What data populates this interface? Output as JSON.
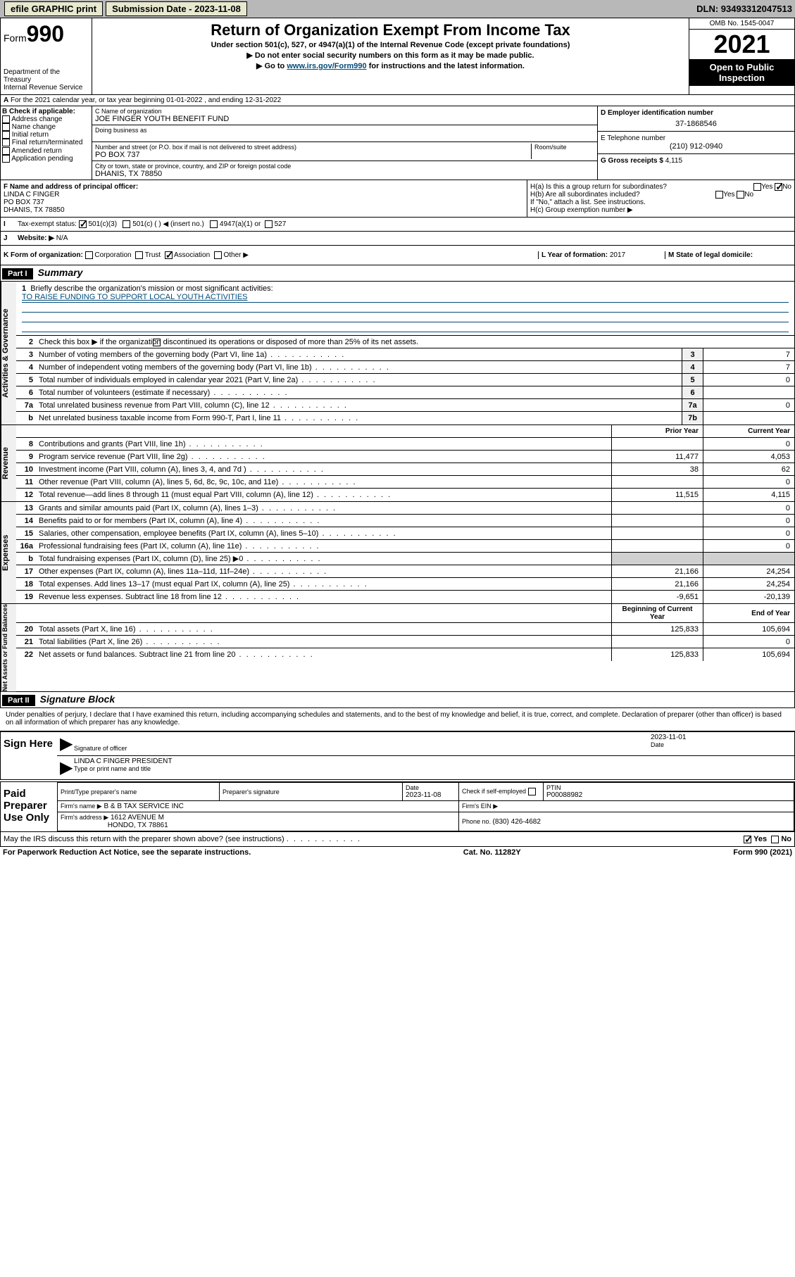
{
  "topbar": {
    "efile": "efile GRAPHIC print",
    "submission_label": "Submission Date - 2023-11-08",
    "dln": "DLN: 93493312047513"
  },
  "header": {
    "form": "Form",
    "form_num": "990",
    "dept": "Department of the Treasury",
    "irs": "Internal Revenue Service",
    "title": "Return of Organization Exempt From Income Tax",
    "sub1": "Under section 501(c), 527, or 4947(a)(1) of the Internal Revenue Code (except private foundations)",
    "sub2": "▶ Do not enter social security numbers on this form as it may be made public.",
    "sub3_pre": "▶ Go to ",
    "sub3_link": "www.irs.gov/Form990",
    "sub3_post": " for instructions and the latest information.",
    "omb": "OMB No. 1545-0047",
    "year": "2021",
    "open": "Open to Public Inspection"
  },
  "section_a": {
    "a_text": "For the 2021 calendar year, or tax year beginning 01-01-2022   , and ending 12-31-2022",
    "b_label": "B Check if applicable:",
    "b_opts": [
      "Address change",
      "Name change",
      "Initial return",
      "Final return/terminated",
      "Amended return",
      "Application pending"
    ],
    "c_name_label": "C Name of organization",
    "c_name": "JOE FINGER YOUTH BENEFIT FUND",
    "dba_label": "Doing business as",
    "addr_label": "Number and street (or P.O. box if mail is not delivered to street address)",
    "room_label": "Room/suite",
    "addr": "PO BOX 737",
    "city_label": "City or town, state or province, country, and ZIP or foreign postal code",
    "city": "DHANIS, TX  78850",
    "d_label": "D Employer identification number",
    "d_val": "37-1868546",
    "e_label": "E Telephone number",
    "e_val": "(210) 912-0940",
    "g_label": "G Gross receipts $ ",
    "g_val": "4,115"
  },
  "section_f": {
    "f_label": "F  Name and address of principal officer:",
    "f_name": "LINDA C FINGER",
    "f_addr1": "PO BOX 737",
    "f_addr2": "DHANIS, TX  78850",
    "ha_label": "H(a)  Is this a group return for subordinates?",
    "hb_label": "H(b)  Are all subordinates included?",
    "h_note": "If \"No,\" attach a list. See instructions.",
    "hc_label": "H(c)  Group exemption number ▶",
    "yes": "Yes",
    "no": "No"
  },
  "section_i": {
    "i_label": "Tax-exempt status:",
    "i_501c3": "501(c)(3)",
    "i_501c": "501(c) (  )  ◀ (insert no.)",
    "i_4947": "4947(a)(1) or",
    "i_527": "527"
  },
  "section_j": {
    "j_label": "Website: ▶",
    "j_val": "N/A"
  },
  "section_k": {
    "k_label": "K Form of organization:",
    "k_corp": "Corporation",
    "k_trust": "Trust",
    "k_assoc": "Association",
    "k_other": "Other ▶",
    "l_label": "L Year of formation: ",
    "l_val": "2017",
    "m_label": "M State of legal domicile:"
  },
  "part1": {
    "hdr": "Part I",
    "title": "Summary",
    "l1_label": "Briefly describe the organization's mission or most significant activities:",
    "l1_val": "TO RAISE FUNDING TO SUPPORT LOCAL YOUTH ACTIVITIES",
    "l2": "Check this box ▶       if the organization discontinued its operations or disposed of more than 25% of its net assets.",
    "lines_gov": [
      {
        "n": "3",
        "t": "Number of voting members of the governing body (Part VI, line 1a)",
        "box": "3",
        "v": "7"
      },
      {
        "n": "4",
        "t": "Number of independent voting members of the governing body (Part VI, line 1b)",
        "box": "4",
        "v": "7"
      },
      {
        "n": "5",
        "t": "Total number of individuals employed in calendar year 2021 (Part V, line 2a)",
        "box": "5",
        "v": "0"
      },
      {
        "n": "6",
        "t": "Total number of volunteers (estimate if necessary)",
        "box": "6",
        "v": ""
      },
      {
        "n": "7a",
        "t": "Total unrelated business revenue from Part VIII, column (C), line 12",
        "box": "7a",
        "v": "0"
      },
      {
        "n": "b",
        "t": "Net unrelated business taxable income from Form 990-T, Part I, line 11",
        "box": "7b",
        "v": ""
      }
    ],
    "col_prior": "Prior Year",
    "col_current": "Current Year",
    "lines_rev": [
      {
        "n": "8",
        "t": "Contributions and grants (Part VIII, line 1h)",
        "p": "",
        "c": "0"
      },
      {
        "n": "9",
        "t": "Program service revenue (Part VIII, line 2g)",
        "p": "11,477",
        "c": "4,053"
      },
      {
        "n": "10",
        "t": "Investment income (Part VIII, column (A), lines 3, 4, and 7d )",
        "p": "38",
        "c": "62"
      },
      {
        "n": "11",
        "t": "Other revenue (Part VIII, column (A), lines 5, 6d, 8c, 9c, 10c, and 11e)",
        "p": "",
        "c": "0"
      },
      {
        "n": "12",
        "t": "Total revenue—add lines 8 through 11 (must equal Part VIII, column (A), line 12)",
        "p": "11,515",
        "c": "4,115"
      }
    ],
    "lines_exp": [
      {
        "n": "13",
        "t": "Grants and similar amounts paid (Part IX, column (A), lines 1–3)",
        "p": "",
        "c": "0"
      },
      {
        "n": "14",
        "t": "Benefits paid to or for members (Part IX, column (A), line 4)",
        "p": "",
        "c": "0"
      },
      {
        "n": "15",
        "t": "Salaries, other compensation, employee benefits (Part IX, column (A), lines 5–10)",
        "p": "",
        "c": "0"
      },
      {
        "n": "16a",
        "t": "Professional fundraising fees (Part IX, column (A), line 11e)",
        "p": "",
        "c": "0"
      },
      {
        "n": "b",
        "t": "Total fundraising expenses (Part IX, column (D), line 25) ▶0",
        "p": "shaded",
        "c": "shaded"
      },
      {
        "n": "17",
        "t": "Other expenses (Part IX, column (A), lines 11a–11d, 11f–24e)",
        "p": "21,166",
        "c": "24,254"
      },
      {
        "n": "18",
        "t": "Total expenses. Add lines 13–17 (must equal Part IX, column (A), line 25)",
        "p": "21,166",
        "c": "24,254"
      },
      {
        "n": "19",
        "t": "Revenue less expenses. Subtract line 18 from line 12",
        "p": "-9,651",
        "c": "-20,139"
      }
    ],
    "col_begin": "Beginning of Current Year",
    "col_end": "End of Year",
    "lines_net": [
      {
        "n": "20",
        "t": "Total assets (Part X, line 16)",
        "p": "125,833",
        "c": "105,694"
      },
      {
        "n": "21",
        "t": "Total liabilities (Part X, line 26)",
        "p": "",
        "c": "0"
      },
      {
        "n": "22",
        "t": "Net assets or fund balances. Subtract line 21 from line 20",
        "p": "125,833",
        "c": "105,694"
      }
    ],
    "tab_gov": "Activities & Governance",
    "tab_rev": "Revenue",
    "tab_exp": "Expenses",
    "tab_net": "Net Assets or Fund Balances"
  },
  "part2": {
    "hdr": "Part II",
    "title": "Signature Block",
    "perjury": "Under penalties of perjury, I declare that I have examined this return, including accompanying schedules and statements, and to the best of my knowledge and belief, it is true, correct, and complete. Declaration of preparer (other than officer) is based on all information of which preparer has any knowledge.",
    "sign_here": "Sign Here",
    "sig_officer": "Signature of officer",
    "sig_date": "Date",
    "sig_date_val": "2023-11-01",
    "sig_name": "LINDA C FINGER  PRESIDENT",
    "sig_name_label": "Type or print name and title",
    "paid": "Paid Preparer Use Only",
    "prep_name_label": "Print/Type preparer's name",
    "prep_sig_label": "Preparer's signature",
    "prep_date_label": "Date",
    "prep_date": "2023-11-08",
    "prep_check": "Check        if self-employed",
    "ptin_label": "PTIN",
    "ptin": "P00088982",
    "firm_name_label": "Firm's name    ▶",
    "firm_name": "B & B TAX SERVICE INC",
    "firm_ein_label": "Firm's EIN ▶",
    "firm_addr_label": "Firm's address ▶",
    "firm_addr": "1612 AVENUE M",
    "firm_city": "HONDO, TX  78861",
    "firm_phone_label": "Phone no. ",
    "firm_phone": "(830) 426-4682",
    "discuss": "May the IRS discuss this return with the preparer shown above? (see instructions)"
  },
  "footer": {
    "left": "For Paperwork Reduction Act Notice, see the separate instructions.",
    "mid": "Cat. No. 11282Y",
    "right": "Form 990 (2021)"
  }
}
